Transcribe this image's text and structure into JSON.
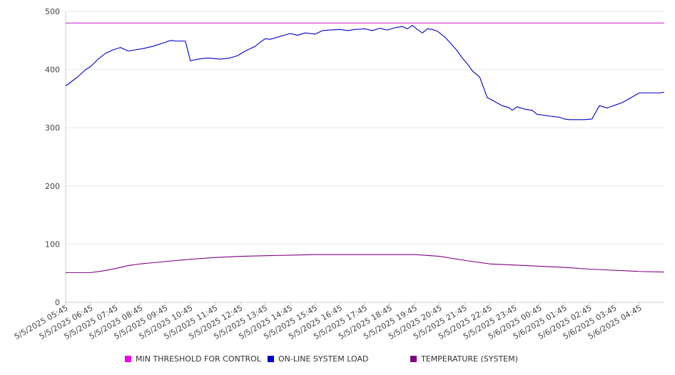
{
  "chart_data": {
    "type": "line",
    "title": "",
    "xlabel": "",
    "ylabel": "",
    "ylim": [
      0,
      500
    ],
    "yticks": [
      0,
      100,
      200,
      300,
      400,
      500
    ],
    "grid": true,
    "legend_position": "bottom",
    "categories": [
      "5/5/2025 05:45",
      "5/5/2025 06:45",
      "5/5/2025 07:45",
      "5/5/2025 08:45",
      "5/5/2025 09:45",
      "5/5/2025 10:45",
      "5/5/2025 11:45",
      "5/5/2025 12:45",
      "5/5/2025 13:45",
      "5/5/2025 14:45",
      "5/5/2025 15:45",
      "5/5/2025 16:45",
      "5/5/2025 17:45",
      "5/5/2025 18:45",
      "5/5/2025 19:45",
      "5/5/2025 20:45",
      "5/5/2025 21:45",
      "5/5/2025 22:45",
      "5/5/2025 23:45",
      "5/6/2025 00:45",
      "5/6/2025 01:45",
      "5/6/2025 02:45",
      "5/6/2025 03:45",
      "5/6/2025 04:45"
    ],
    "series": [
      {
        "name": "MIN THRESHOLD FOR CONTROL",
        "color": "#cc33cc",
        "x": [
          0,
          23.999
        ],
        "values": [
          480,
          480
        ]
      },
      {
        "name": "ON-LINE SYSTEM LOAD",
        "color": "#0000cc",
        "x": [
          0,
          0.1,
          0.5,
          0.8,
          1.0,
          1.3,
          1.6,
          1.9,
          2.2,
          2.5,
          2.8,
          3.1,
          3.5,
          4.0,
          4.2,
          4.5,
          4.8,
          4.9,
          5.0,
          5.3,
          5.7,
          6.2,
          6.6,
          6.9,
          7.2,
          7.6,
          7.8,
          8.0,
          8.2,
          8.6,
          9.0,
          9.3,
          9.6,
          10.0,
          10.3,
          10.6,
          11.0,
          11.3,
          11.6,
          12.0,
          12.3,
          12.6,
          12.9,
          13.2,
          13.5,
          13.7,
          13.9,
          14.1,
          14.3,
          14.5,
          14.7,
          14.9,
          15.2,
          15.5,
          15.7,
          15.9,
          16.1,
          16.3,
          16.6,
          16.9,
          17.2,
          17.5,
          17.8,
          17.9,
          18.1,
          18.4,
          18.7,
          18.9,
          19.1,
          19.4,
          19.6,
          19.8,
          20.0,
          20.2,
          20.5,
          20.8,
          21.1,
          21.4,
          21.7,
          21.9,
          22.1,
          22.3,
          22.6,
          23.0,
          23.3,
          23.6,
          23.8,
          23.99
        ],
        "values": [
          372,
          375,
          388,
          400,
          405,
          418,
          428,
          434,
          438,
          432,
          434,
          436,
          440,
          447,
          450,
          449,
          449,
          432,
          415,
          418,
          420,
          418,
          420,
          424,
          432,
          440,
          447,
          453,
          452,
          457,
          462,
          459,
          463,
          461,
          467,
          468,
          469,
          467,
          469,
          470,
          467,
          471,
          468,
          472,
          474,
          470,
          476,
          469,
          463,
          470,
          469,
          466,
          456,
          442,
          432,
          420,
          410,
          398,
          387,
          352,
          345,
          338,
          334,
          330,
          336,
          332,
          330,
          323,
          322,
          320,
          319,
          318,
          315,
          314,
          314,
          314,
          315,
          338,
          334,
          337,
          340,
          343,
          350,
          360,
          360,
          360,
          360,
          361
        ]
      },
      {
        "name": "TEMPERATURE (SYSTEM)",
        "color": "#800080",
        "x": [
          0,
          1.0,
          1.5,
          2.0,
          2.5,
          3.0,
          3.5,
          4.0,
          5.0,
          6.0,
          7.0,
          8.0,
          9.0,
          10.0,
          11.0,
          12.0,
          13.0,
          14.0,
          15.0,
          16.0,
          17.0,
          18.0,
          19.0,
          20.0,
          21.0,
          22.0,
          23.0,
          23.99
        ],
        "values": [
          51,
          51,
          54,
          58,
          63,
          66,
          68,
          70,
          74,
          77,
          79,
          80,
          81,
          82,
          82,
          82,
          82,
          82,
          79,
          72,
          66,
          64,
          62,
          60,
          57,
          55,
          53,
          52
        ]
      }
    ]
  }
}
